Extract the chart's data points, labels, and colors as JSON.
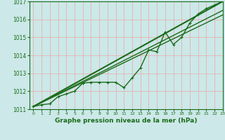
{
  "background_color": "#cce8e8",
  "grid_color": "#e8b0b0",
  "line_color": "#1a6b1a",
  "xlabel": "Graphe pression niveau de la mer (hPa)",
  "xlim": [
    -0.5,
    23
  ],
  "ylim": [
    1011,
    1017
  ],
  "yticks": [
    1011,
    1012,
    1013,
    1014,
    1015,
    1016,
    1017
  ],
  "xticks": [
    0,
    1,
    2,
    3,
    4,
    5,
    6,
    7,
    8,
    9,
    10,
    11,
    12,
    13,
    14,
    15,
    16,
    17,
    18,
    19,
    20,
    21,
    22,
    23
  ],
  "main_series": {
    "x": [
      0,
      1,
      2,
      3,
      4,
      5,
      6,
      7,
      8,
      9,
      10,
      11,
      12,
      13,
      14,
      15,
      16,
      17,
      18,
      19,
      20,
      21,
      22,
      23
    ],
    "y": [
      1011.15,
      1011.25,
      1011.3,
      1011.7,
      1011.85,
      1012.0,
      1012.45,
      1012.5,
      1012.5,
      1012.5,
      1012.5,
      1012.2,
      1012.75,
      1013.3,
      1014.3,
      1014.2,
      1015.3,
      1014.6,
      1015.0,
      1015.8,
      1016.3,
      1016.6,
      1016.8,
      1017.0
    ],
    "marker": "+",
    "linewidth": 1.0,
    "linestyle": "-",
    "markersize": 3.0
  },
  "straight_lines": [
    {
      "x0": 0,
      "y0": 1011.15,
      "x1": 23,
      "y1": 1017.0,
      "linewidth": 1.5
    },
    {
      "x0": 0,
      "y0": 1011.15,
      "x1": 23,
      "y1": 1016.5,
      "linewidth": 1.0
    },
    {
      "x0": 0,
      "y0": 1011.15,
      "x1": 23,
      "y1": 1016.25,
      "linewidth": 1.0
    }
  ]
}
